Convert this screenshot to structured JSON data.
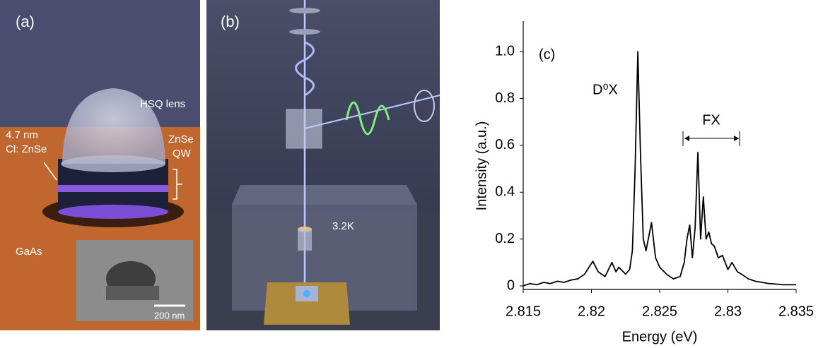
{
  "panel_a": {
    "label": "(a)",
    "lens": "HSQ lens",
    "thickness": "4.7 nm",
    "doping": "Cl: ZnSe",
    "qw_line1": "ZnSe",
    "qw_line2": "QW",
    "substrate": "GaAs",
    "scale_bar": "200 nm"
  },
  "panel_b": {
    "label": "(b)",
    "temperature": "3.2K"
  },
  "chart_data": {
    "type": "line",
    "panel_label": "(c)",
    "x_label": "Energy (eV)",
    "y_label": "Intensity (a.u.)",
    "annotations": [
      "D⁰X",
      "FX"
    ],
    "color": "#000000",
    "xlim": [
      2.815,
      2.835
    ],
    "xticks": [
      2.815,
      2.82,
      2.825,
      2.83,
      2.835
    ],
    "ylim": [
      -0.015,
      1.13
    ],
    "yticks": [
      0,
      0.2,
      0.4,
      0.6,
      0.8,
      {
        "value": 1,
        "label": "1.0"
      }
    ],
    "x": [
      2.815,
      2.8155,
      2.816,
      2.8165,
      2.817,
      2.8175,
      2.818,
      2.8185,
      2.819,
      2.8195,
      2.8201,
      2.8205,
      2.821,
      2.8215,
      2.8218,
      2.822,
      2.8225,
      2.8228,
      2.823,
      2.8232,
      2.8234,
      2.8236,
      2.8238,
      2.824,
      2.8244,
      2.8247,
      2.825,
      2.8255,
      2.826,
      2.8265,
      2.8268,
      2.827,
      2.8272,
      2.8274,
      2.8276,
      2.8278,
      2.828,
      2.8282,
      2.8284,
      2.8286,
      2.8288,
      2.829,
      2.8293,
      2.8296,
      2.83,
      2.8303,
      2.8307,
      2.831,
      2.8315,
      2.832,
      2.8325,
      2.833,
      2.8335,
      2.834,
      2.835
    ],
    "values": [
      0.0,
      0.01,
      0.005,
      0.015,
      0.01,
      0.02,
      0.015,
      0.025,
      0.03,
      0.05,
      0.105,
      0.06,
      0.04,
      0.1,
      0.06,
      0.08,
      0.05,
      0.07,
      0.15,
      0.5,
      1.0,
      0.55,
      0.2,
      0.15,
      0.27,
      0.12,
      0.08,
      0.05,
      0.03,
      0.04,
      0.1,
      0.2,
      0.26,
      0.12,
      0.25,
      0.57,
      0.2,
      0.38,
      0.2,
      0.23,
      0.18,
      0.17,
      0.12,
      0.13,
      0.07,
      0.1,
      0.06,
      0.05,
      0.03,
      0.02,
      0.015,
      0.01,
      0.008,
      0.005,
      0.005
    ]
  }
}
